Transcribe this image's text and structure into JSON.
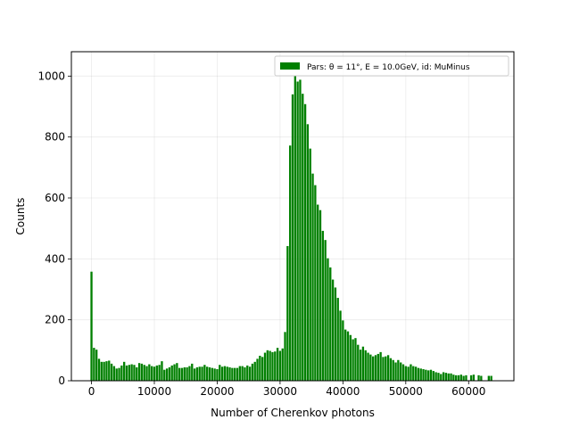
{
  "chart_data": {
    "type": "bar",
    "title": "",
    "xlabel": "Number of Cherenkov photons",
    "ylabel": "Counts",
    "xlim": [
      -3200,
      67200
    ],
    "ylim": [
      0,
      1080
    ],
    "xticks": [
      0,
      10000,
      20000,
      30000,
      40000,
      50000,
      60000
    ],
    "yticks": [
      0,
      200,
      400,
      600,
      800,
      1000
    ],
    "grid": true,
    "legend": {
      "position": "top-right",
      "label": "Pars: θ = 11°, E = 10.0GeV, id: MuMinus"
    },
    "bar_color": "#008000",
    "bar_width": 330,
    "series": [
      {
        "name": "Pars: θ = 11°, E = 10.0GeV, id: MuMinus",
        "x": [
          0,
          400,
          800,
          1200,
          1600,
          2000,
          2400,
          2800,
          3200,
          3600,
          4000,
          4400,
          4800,
          5200,
          5600,
          6000,
          6400,
          6800,
          7200,
          7600,
          8000,
          8400,
          8800,
          9200,
          9600,
          10000,
          10400,
          10800,
          11200,
          11600,
          12000,
          12400,
          12800,
          13200,
          13600,
          14000,
          14400,
          14800,
          15200,
          15600,
          16000,
          16400,
          16800,
          17200,
          17600,
          18000,
          18400,
          18800,
          19200,
          19600,
          20000,
          20400,
          20800,
          21200,
          21600,
          22000,
          22400,
          22800,
          23200,
          23600,
          24000,
          24400,
          24800,
          25200,
          25600,
          26000,
          26400,
          26800,
          27200,
          27600,
          28000,
          28400,
          28800,
          29200,
          29600,
          30000,
          30400,
          30800,
          31200,
          31600,
          32000,
          32400,
          32800,
          33200,
          33600,
          34000,
          34400,
          34800,
          35200,
          35600,
          36000,
          36400,
          36800,
          37200,
          37600,
          38000,
          38400,
          38800,
          39200,
          39600,
          40000,
          40400,
          40800,
          41200,
          41600,
          42000,
          42400,
          42800,
          43200,
          43600,
          44000,
          44400,
          44800,
          45200,
          45600,
          46000,
          46400,
          46800,
          47200,
          47600,
          48000,
          48400,
          48800,
          49200,
          49600,
          50000,
          50400,
          50800,
          51200,
          51600,
          52000,
          52400,
          52800,
          53200,
          53600,
          54000,
          54400,
          54800,
          55200,
          55600,
          56000,
          56400,
          56800,
          57200,
          57600,
          58000,
          58400,
          58800,
          59200,
          59600,
          60000,
          60400,
          60800,
          61200,
          61600,
          62000,
          62400,
          62800,
          63200,
          63600,
          64000
        ],
        "values": [
          358,
          108,
          102,
          72,
          62,
          62,
          64,
          66,
          56,
          48,
          40,
          42,
          50,
          62,
          50,
          52,
          54,
          52,
          44,
          58,
          56,
          52,
          48,
          54,
          48,
          46,
          50,
          52,
          64,
          36,
          40,
          44,
          50,
          54,
          58,
          42,
          42,
          44,
          44,
          48,
          56,
          40,
          44,
          46,
          46,
          52,
          46,
          44,
          42,
          40,
          38,
          52,
          46,
          48,
          46,
          44,
          42,
          42,
          42,
          48,
          48,
          44,
          50,
          46,
          56,
          62,
          72,
          82,
          78,
          92,
          100,
          98,
          94,
          96,
          108,
          98,
          106,
          160,
          442,
          772,
          940,
          1000,
          982,
          988,
          942,
          908,
          842,
          762,
          680,
          642,
          578,
          560,
          492,
          462,
          402,
          372,
          332,
          306,
          272,
          230,
          198,
          168,
          162,
          150,
          136,
          140,
          118,
          102,
          112,
          100,
          92,
          86,
          80,
          84,
          88,
          94,
          78,
          80,
          84,
          74,
          68,
          60,
          68,
          60,
          54,
          48,
          46,
          54,
          48,
          46,
          42,
          40,
          38,
          36,
          34,
          36,
          32,
          28,
          26,
          22,
          28,
          26,
          24,
          24,
          20,
          18,
          18,
          20,
          16,
          18,
          0,
          18,
          20,
          0,
          18,
          16,
          0,
          0,
          16,
          16,
          0
        ]
      }
    ]
  }
}
